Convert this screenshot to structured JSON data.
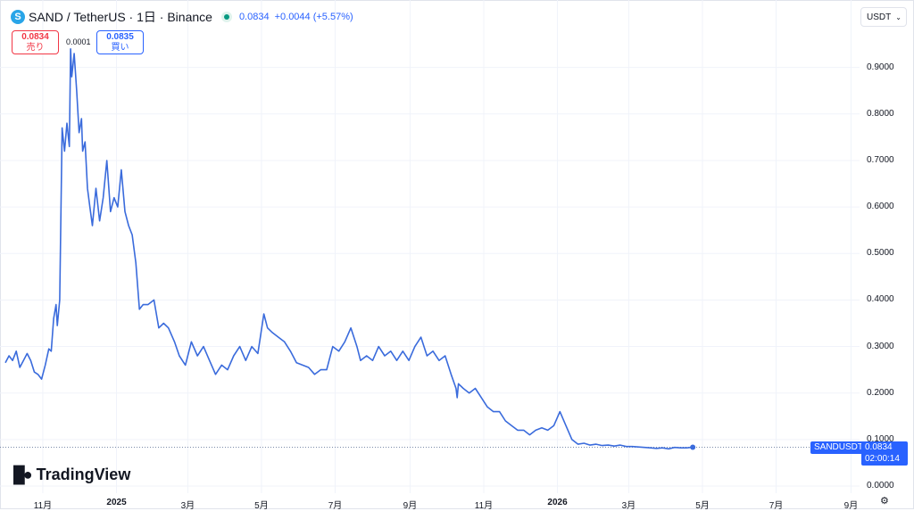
{
  "header": {
    "title": "SAND / TetherUS · 1日 · Binance",
    "logo_letter": "S",
    "price": "0.0834",
    "change": "+0.0044 (+5.57%)"
  },
  "trade": {
    "sell_price": "0.0834",
    "sell_label": "売り",
    "spread": "0.0001",
    "buy_price": "0.0835",
    "buy_label": "買い"
  },
  "currency": "USDT",
  "symbol_label": "SANDUSDT",
  "last_price_label": "0.0834",
  "countdown": "02:00:14",
  "brand": "TradingView",
  "colors": {
    "line": "#3a6bdc",
    "accent": "#2962ff",
    "sell": "#f23645",
    "grid": "#f0f3fa"
  },
  "chart_data": {
    "type": "line",
    "title": "SAND / TetherUS · 1日 · Binance",
    "xlabel": "",
    "ylabel": "",
    "ylim": [
      0.0,
      1.0
    ],
    "grid": true,
    "x_ticks": [
      "11月",
      "2025",
      "3月",
      "5月",
      "7月",
      "9月",
      "11月",
      "2026",
      "3月",
      "5月",
      "7月",
      "9月"
    ],
    "y_ticks": [
      "0.9000",
      "0.8000",
      "0.7000",
      "0.6000",
      "0.5000",
      "0.4000",
      "0.3000",
      "0.2000",
      "0.1000",
      "0.0000"
    ],
    "last_value": 0.0834,
    "series": [
      {
        "x": [
          "2024-10-01",
          "2024-10-04",
          "2024-10-07",
          "2024-10-10",
          "2024-10-13",
          "2024-10-16",
          "2024-10-19",
          "2024-10-22",
          "2024-10-25",
          "2024-10-28",
          "2024-10-31",
          "2024-11-03",
          "2024-11-06",
          "2024-11-08",
          "2024-11-10",
          "2024-11-12",
          "2024-11-13",
          "2024-11-15",
          "2024-11-17",
          "2024-11-19",
          "2024-11-21",
          "2024-11-23",
          "2024-11-24",
          "2024-11-25",
          "2024-11-27",
          "2024-11-29",
          "2024-12-01",
          "2024-12-03",
          "2024-12-04",
          "2024-12-06",
          "2024-12-08",
          "2024-12-10",
          "2024-12-12",
          "2024-12-15",
          "2024-12-18",
          "2024-12-21",
          "2024-12-24",
          "2024-12-27",
          "2024-12-30",
          "2025-01-02",
          "2025-01-05",
          "2025-01-08",
          "2025-01-11",
          "2025-01-14",
          "2025-01-17",
          "2025-01-20",
          "2025-01-23",
          "2025-01-27",
          "2025-02-01",
          "2025-02-05",
          "2025-02-09",
          "2025-02-13",
          "2025-02-18",
          "2025-02-22",
          "2025-02-27",
          "2025-03-04",
          "2025-03-09",
          "2025-03-14",
          "2025-03-19",
          "2025-03-24",
          "2025-03-29",
          "2025-04-03",
          "2025-04-08",
          "2025-04-13",
          "2025-04-18",
          "2025-04-23",
          "2025-04-28",
          "2025-05-03",
          "2025-05-06",
          "2025-05-10",
          "2025-05-15",
          "2025-05-20",
          "2025-05-25",
          "2025-05-30",
          "2025-06-04",
          "2025-06-09",
          "2025-06-14",
          "2025-06-19",
          "2025-06-24",
          "2025-06-29",
          "2025-07-04",
          "2025-07-09",
          "2025-07-14",
          "2025-07-19",
          "2025-07-22",
          "2025-07-27",
          "2025-08-01",
          "2025-08-06",
          "2025-08-11",
          "2025-08-16",
          "2025-08-21",
          "2025-08-26",
          "2025-08-31",
          "2025-09-05",
          "2025-09-10",
          "2025-09-15",
          "2025-09-20",
          "2025-09-25",
          "2025-09-30",
          "2025-10-05",
          "2025-10-09",
          "2025-10-10",
          "2025-10-11",
          "2025-10-15",
          "2025-10-20",
          "2025-10-25",
          "2025-10-30",
          "2025-11-04",
          "2025-11-09",
          "2025-11-14",
          "2025-11-19",
          "2025-11-24",
          "2025-11-29",
          "2025-12-04",
          "2025-12-09",
          "2025-12-14",
          "2025-12-19",
          "2025-12-24",
          "2025-12-29",
          "2026-01-03",
          "2026-01-08",
          "2026-01-13",
          "2026-01-18",
          "2026-01-23",
          "2026-01-28",
          "2026-02-02",
          "2026-02-07",
          "2026-02-12",
          "2026-02-17",
          "2026-02-22",
          "2026-02-27",
          "2026-03-04",
          "2026-03-09",
          "2026-03-14",
          "2026-03-19",
          "2026-03-24",
          "2026-03-29",
          "2026-04-03",
          "2026-04-08",
          "2026-04-13",
          "2026-04-18",
          "2026-04-23"
        ],
        "y": [
          0.265,
          0.28,
          0.27,
          0.29,
          0.255,
          0.27,
          0.285,
          0.27,
          0.245,
          0.24,
          0.23,
          0.26,
          0.295,
          0.29,
          0.36,
          0.39,
          0.345,
          0.4,
          0.77,
          0.72,
          0.78,
          0.73,
          0.94,
          0.88,
          0.93,
          0.85,
          0.76,
          0.79,
          0.72,
          0.74,
          0.64,
          0.6,
          0.56,
          0.64,
          0.57,
          0.62,
          0.7,
          0.59,
          0.62,
          0.6,
          0.68,
          0.59,
          0.56,
          0.54,
          0.48,
          0.38,
          0.39,
          0.39,
          0.4,
          0.34,
          0.35,
          0.34,
          0.31,
          0.28,
          0.26,
          0.31,
          0.28,
          0.3,
          0.27,
          0.24,
          0.26,
          0.25,
          0.28,
          0.3,
          0.27,
          0.3,
          0.285,
          0.37,
          0.34,
          0.33,
          0.32,
          0.31,
          0.29,
          0.265,
          0.26,
          0.255,
          0.24,
          0.25,
          0.25,
          0.3,
          0.29,
          0.31,
          0.34,
          0.3,
          0.27,
          0.28,
          0.27,
          0.3,
          0.28,
          0.29,
          0.27,
          0.29,
          0.27,
          0.3,
          0.32,
          0.28,
          0.29,
          0.27,
          0.28,
          0.24,
          0.21,
          0.19,
          0.22,
          0.21,
          0.2,
          0.21,
          0.19,
          0.17,
          0.16,
          0.16,
          0.14,
          0.13,
          0.12,
          0.12,
          0.11,
          0.12,
          0.125,
          0.12,
          0.13,
          0.16,
          0.13,
          0.1,
          0.09,
          0.092,
          0.088,
          0.09,
          0.087,
          0.088,
          0.086,
          0.088,
          0.085,
          0.085,
          0.084,
          0.083,
          0.082,
          0.081,
          0.082,
          0.08,
          0.083,
          0.082,
          0.082,
          0.0834
        ]
      }
    ]
  }
}
